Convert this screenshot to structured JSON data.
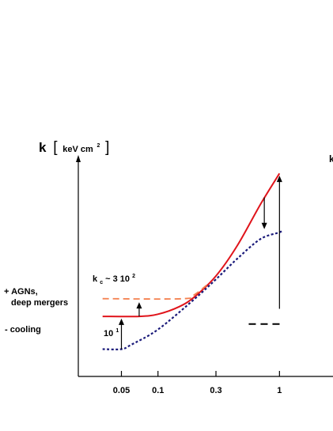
{
  "chart_data": {
    "type": "line",
    "ylabel": "k",
    "ylabel_units": "keV cm",
    "ylabel_units_sup": "2",
    "x_scale": "log",
    "x_ticks": [
      "0.05",
      "0.1",
      "0.3",
      "1"
    ],
    "x_tick_values": [
      0.05,
      0.1,
      0.3,
      1
    ],
    "xlim": [
      0.035,
      1.05
    ],
    "ylim": [
      0,
      10
    ],
    "grid": false,
    "colors": {
      "solid": "#e0141b",
      "dashed_orange": "#f4804f",
      "dotted_blue": "#1a1a7a",
      "axis": "#000000",
      "reference": "#000000"
    },
    "series": [
      {
        "style": "solid",
        "color": "#e0141b",
        "points": [
          [
            0.035,
            2.75
          ],
          [
            0.07,
            2.75
          ],
          [
            0.1,
            2.85
          ],
          [
            0.15,
            3.2
          ],
          [
            0.2,
            3.65
          ],
          [
            0.3,
            4.6
          ],
          [
            0.45,
            6.0
          ],
          [
            0.7,
            7.9
          ],
          [
            1.0,
            9.3
          ]
        ]
      },
      {
        "style": "dashed",
        "color": "#f4804f",
        "points": [
          [
            0.035,
            3.56
          ],
          [
            0.16,
            3.56
          ],
          [
            0.2,
            3.75
          ],
          [
            0.26,
            4.25
          ]
        ]
      },
      {
        "style": "dotted",
        "color": "#1a1a7a",
        "points": [
          [
            0.035,
            1.25
          ],
          [
            0.05,
            1.25
          ],
          [
            0.06,
            1.45
          ],
          [
            0.1,
            2.15
          ],
          [
            0.2,
            3.55
          ],
          [
            0.3,
            4.45
          ],
          [
            0.45,
            5.4
          ],
          [
            0.7,
            6.3
          ],
          [
            1.0,
            6.6
          ],
          [
            1.05,
            6.7
          ]
        ]
      }
    ],
    "arrows": [
      {
        "x": 0.07,
        "from": 2.75,
        "to": 3.4
      },
      {
        "x": 0.05,
        "from": 1.25,
        "to": 2.65
      },
      {
        "x": 0.75,
        "from": 8.2,
        "to": 6.75
      },
      {
        "x": 1.0,
        "from": 3.1,
        "to": 9.2
      }
    ],
    "reference_line": {
      "style": "dashed",
      "x_start": 0.8,
      "x_end": 1.05,
      "y": 2.4
    },
    "annotations": {
      "kc_main": "k",
      "kc_sub": "c",
      "kc_rest": " ~ 3 10",
      "kc_sup": "2",
      "ten_main": "10",
      "ten_sup": "1",
      "agn_line1": "+ AGNs,",
      "agn_line2": "deep mergers",
      "cooling": "- cooling",
      "right_k": "k"
    }
  }
}
